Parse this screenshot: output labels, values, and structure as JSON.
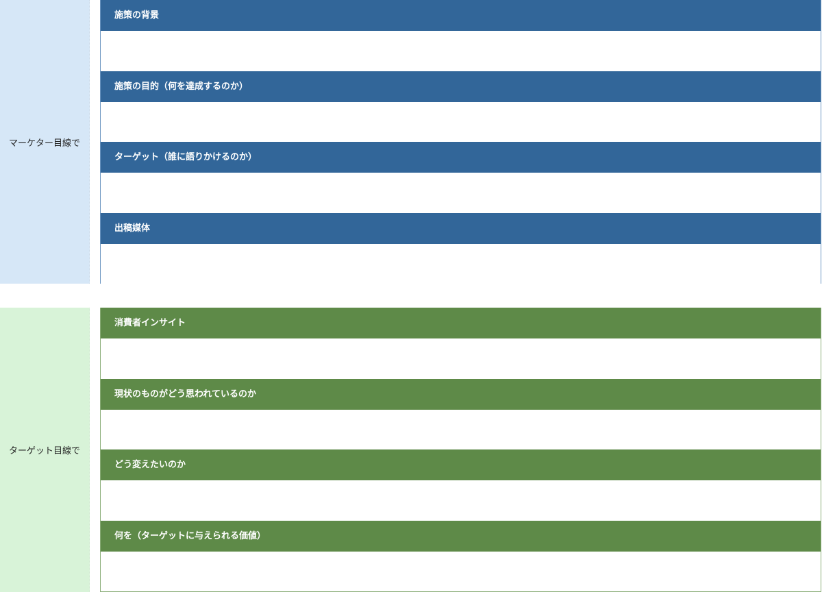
{
  "sections": [
    {
      "label": "マーケター目線で",
      "items": [
        "施策の背景",
        "施策の目的（何を達成するのか）",
        "ターゲット（誰に語りかけるのか）",
        "出稿媒体"
      ]
    },
    {
      "label": "ターゲット目線で",
      "items": [
        "消費者インサイト",
        "現状のものがどう思われているのか",
        "どう変えたいのか",
        "何を（ターゲットに与えられる価値）"
      ]
    }
  ],
  "colors": {
    "marketer_header": "#326699",
    "marketer_side": "#d6e7f7",
    "target_header": "#5e8a48",
    "target_side": "#d8f3d8"
  }
}
